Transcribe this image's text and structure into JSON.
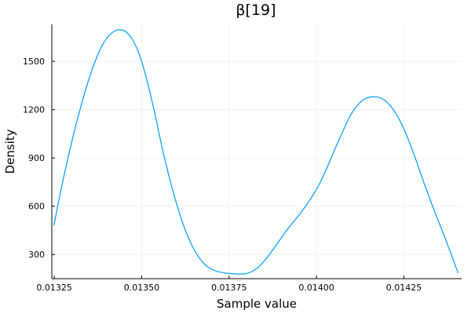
{
  "chart_data": {
    "type": "line",
    "title": "β[19]",
    "xlabel": "Sample value",
    "ylabel": "Density",
    "xlim": [
      0.013243,
      0.014415
    ],
    "ylim": [
      150,
      1730
    ],
    "xticks": [
      0.01325,
      0.0135,
      0.01375,
      0.014,
      0.01425
    ],
    "xtick_labels": [
      "0.01325",
      "0.01350",
      "0.01375",
      "0.01400",
      "0.01425"
    ],
    "yticks": [
      300,
      600,
      900,
      1200,
      1500
    ],
    "ytick_labels": [
      "300",
      "600",
      "900",
      "1200",
      "1500"
    ],
    "grid": true,
    "legend": "none",
    "series": [
      {
        "color": "#009AFA",
        "x": [
          0.013249,
          0.01327,
          0.0133,
          0.01333,
          0.01336,
          0.01339,
          0.01342,
          0.01345,
          0.013475,
          0.0135,
          0.01353,
          0.01356,
          0.01359,
          0.01362,
          0.01365,
          0.01368,
          0.01371,
          0.01374,
          0.01377,
          0.0138,
          0.01383,
          0.01386,
          0.01389,
          0.01392,
          0.01395,
          0.01398,
          0.01401,
          0.01404,
          0.01407,
          0.0141,
          0.01413,
          0.01416,
          0.01419,
          0.01422,
          0.01425,
          0.01428,
          0.01431,
          0.01434,
          0.01437,
          0.014405
        ],
        "y": [
          480,
          710,
          1000,
          1250,
          1460,
          1610,
          1685,
          1690,
          1630,
          1500,
          1250,
          950,
          690,
          480,
          330,
          240,
          200,
          185,
          180,
          182,
          215,
          285,
          375,
          465,
          545,
          635,
          745,
          890,
          1040,
          1175,
          1255,
          1280,
          1265,
          1200,
          1080,
          915,
          730,
          555,
          390,
          185
        ]
      }
    ]
  }
}
